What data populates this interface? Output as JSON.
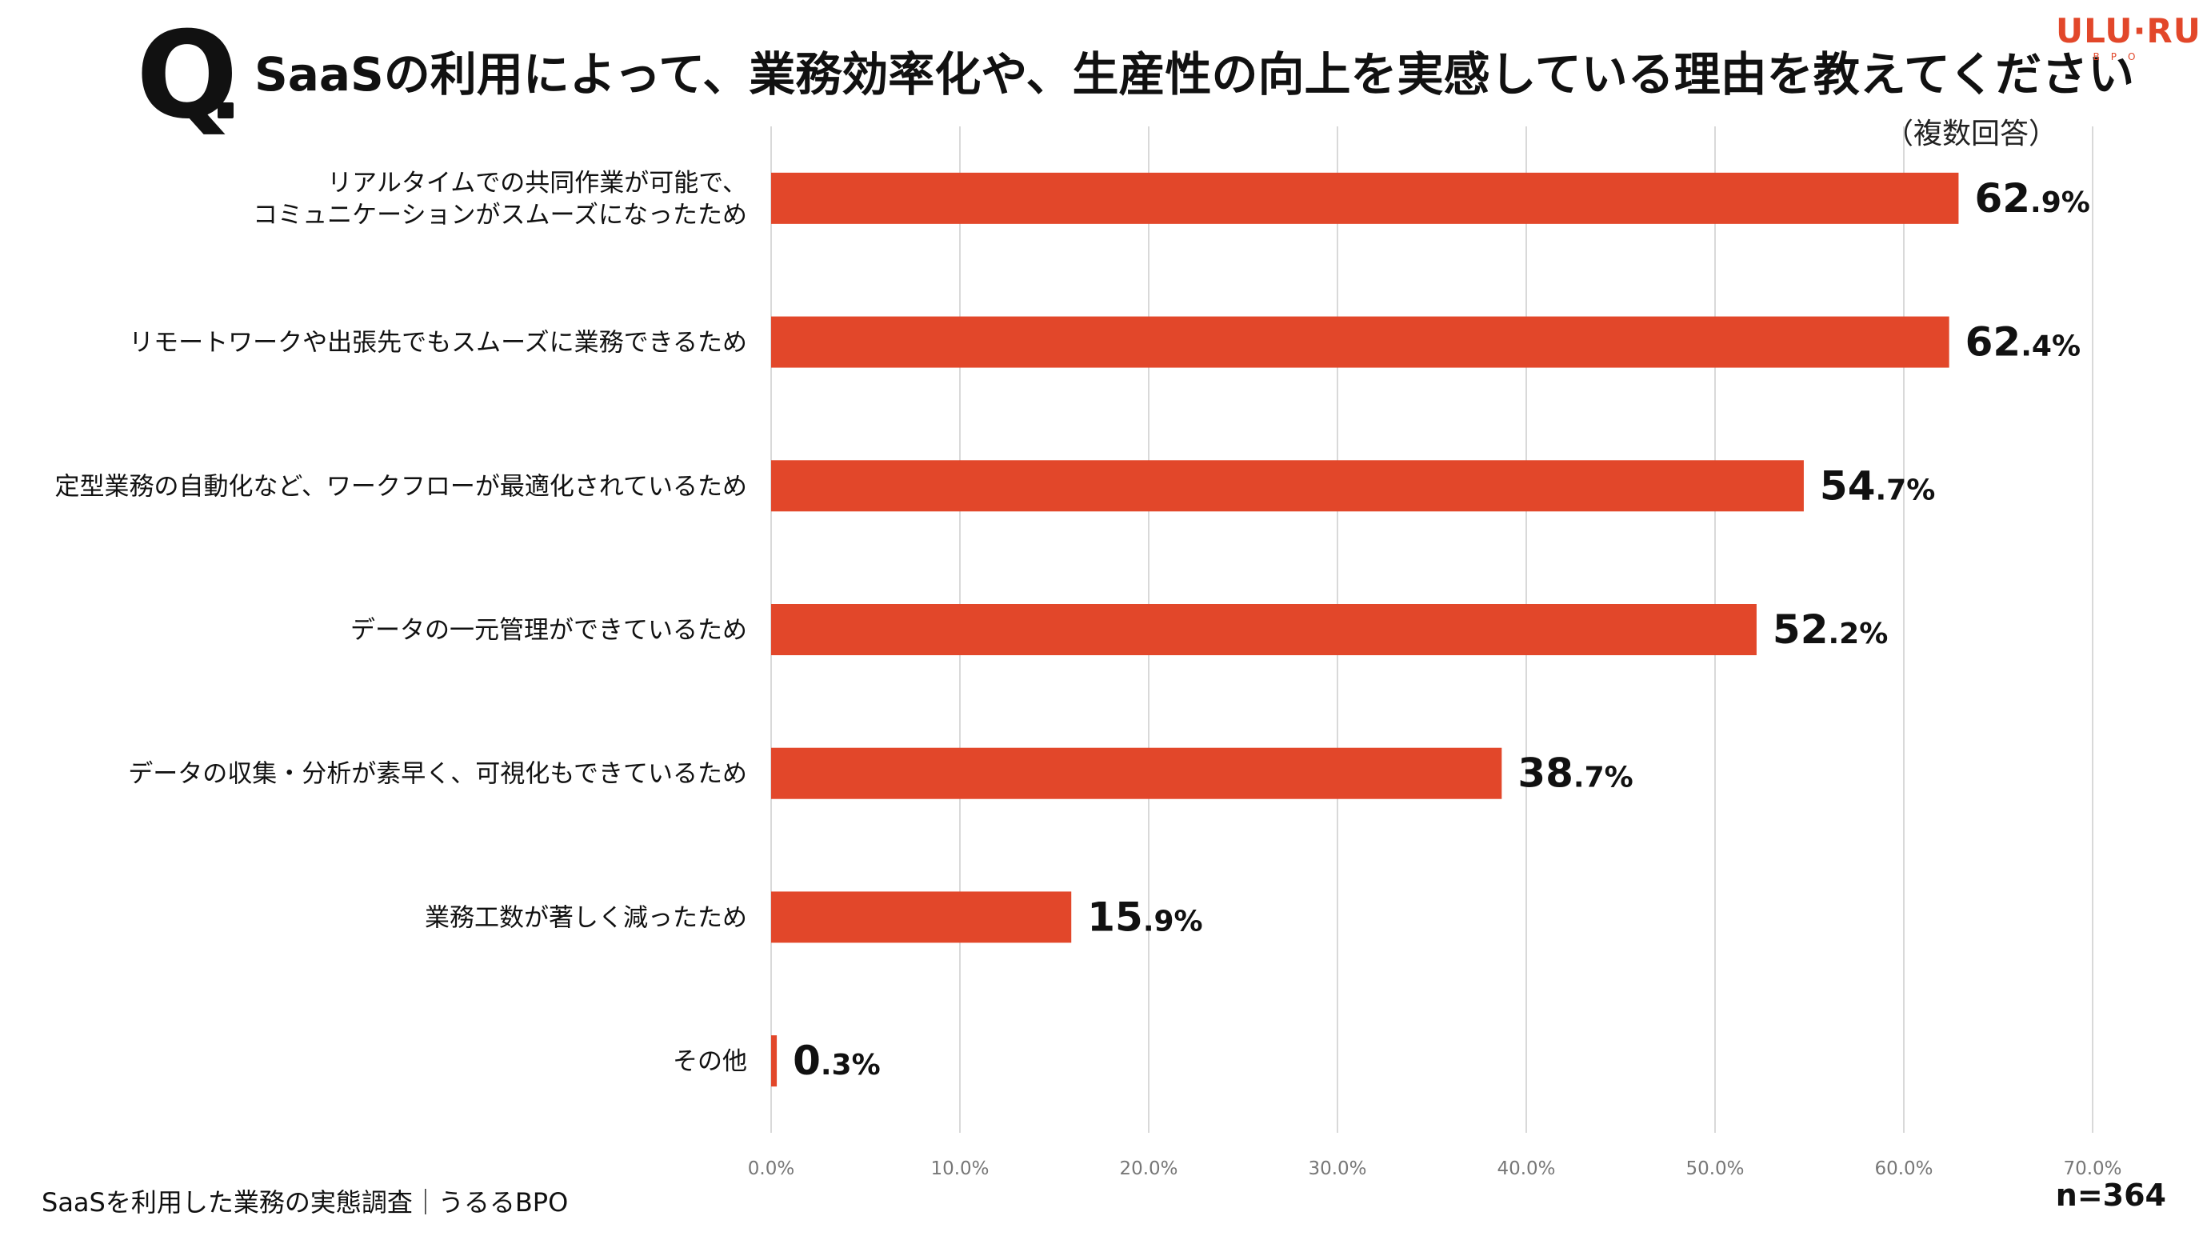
{
  "header": {
    "q_mark": "Q",
    "title": "SaaSの利用によって、業務効率化や、生産性の向上を実感している理由を教えてください",
    "note": "（複数回答）"
  },
  "logo": {
    "main": "ULU·RU",
    "sub": "BPO"
  },
  "colors": {
    "bar": "#e2472a",
    "grid": "#d9d9d9",
    "tick": "#777777"
  },
  "chart_data": {
    "type": "bar",
    "orientation": "horizontal",
    "categories": [
      "リアルタイムでの共同作業が可能で、\nコミュニケーションがスムーズになったため",
      "リモートワークや出張先でもスムーズに業務できるため",
      "定型業務の自動化など、ワークフローが最適化されているため",
      "データの一元管理ができているため",
      "データの収集・分析が素早く、可視化もできているため",
      "業務工数が著しく減ったため",
      "その他"
    ],
    "values": [
      62.9,
      62.4,
      54.7,
      52.2,
      38.7,
      15.9,
      0.3
    ],
    "xlim": [
      0,
      70
    ],
    "xticks": [
      0,
      10,
      20,
      30,
      40,
      50,
      60,
      70
    ],
    "xtick_labels": [
      "0.0%",
      "10.0%",
      "20.0%",
      "30.0%",
      "40.0%",
      "50.0%",
      "60.0%",
      "70.0%"
    ],
    "grid": true
  },
  "footer": {
    "source": "SaaSを利用した業務の実態調査｜うるるBPO",
    "sample": "n=364"
  }
}
